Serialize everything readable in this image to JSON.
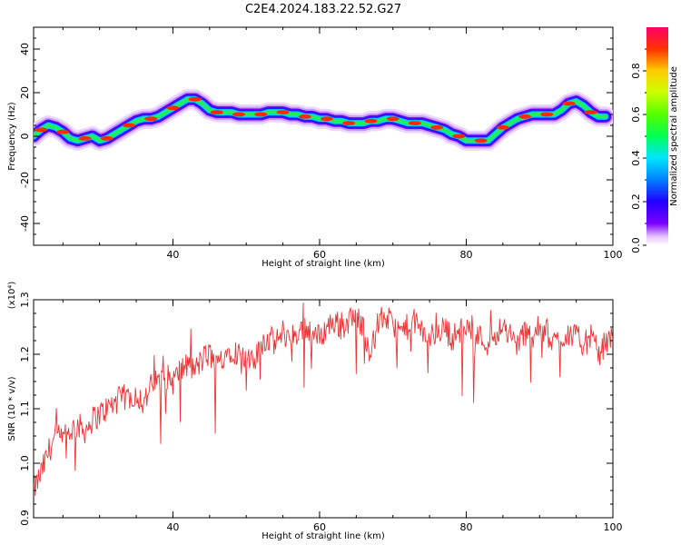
{
  "figure": {
    "title": "C2E4.2024.183.22.52.G27"
  },
  "chart_data": [
    {
      "type": "heatmap",
      "name": "spectrogram",
      "xlabel": "Height of straight line (km)",
      "ylabel": "Frequency (Hz)",
      "xlim": [
        21,
        100
      ],
      "ylim": [
        -50,
        50
      ],
      "xticks": [
        "40",
        "60",
        "80",
        "100"
      ],
      "yticks": [
        "40",
        "20",
        "0",
        "-20",
        "-40"
      ],
      "ridge": {
        "x": [
          21,
          22,
          23,
          24,
          25,
          26,
          27,
          28,
          29,
          30,
          31,
          32,
          33,
          34,
          35,
          36,
          37,
          38,
          39,
          40,
          41,
          42,
          43,
          44,
          45,
          46,
          47,
          48,
          49,
          50,
          51,
          52,
          53,
          54,
          55,
          56,
          57,
          58,
          59,
          60,
          61,
          62,
          63,
          64,
          65,
          66,
          67,
          68,
          69,
          70,
          71,
          72,
          73,
          74,
          75,
          76,
          77,
          78,
          79,
          80,
          81,
          82,
          83,
          84,
          85,
          86,
          87,
          88,
          89,
          90,
          91,
          92,
          93,
          94,
          95,
          96,
          97,
          98,
          99
        ],
        "y": [
          0,
          3,
          5,
          4,
          2,
          -1,
          -2,
          -1,
          0,
          -2,
          -1,
          1,
          3,
          5,
          7,
          8,
          8,
          9,
          11,
          13,
          15,
          17,
          17,
          15,
          12,
          11,
          11,
          11,
          10,
          10,
          10,
          10,
          11,
          11,
          11,
          10,
          10,
          9,
          9,
          8,
          8,
          7,
          7,
          6,
          6,
          6,
          7,
          7,
          8,
          8,
          7,
          6,
          6,
          6,
          5,
          4,
          3,
          1,
          0,
          -2,
          -2,
          -2,
          -2,
          1,
          4,
          6,
          8,
          9,
          10,
          10,
          10,
          10,
          12,
          15,
          16,
          14,
          11,
          9,
          9
        ]
      }
    },
    {
      "type": "line",
      "name": "snr",
      "xlabel": "Height of straight line (km)",
      "ylabel": "SNR (10 * v/v)",
      "multiplier": "(x10⁴)",
      "xlim": [
        21,
        100
      ],
      "ylim": [
        0.9,
        1.3
      ],
      "xticks": [
        "40",
        "60",
        "80",
        "100"
      ],
      "yticks": [
        "1.3",
        "1.2",
        "1.1",
        "1.0",
        "0.9"
      ],
      "series": [
        {
          "color": "#ee3333",
          "x": [
            21,
            22,
            23,
            24,
            25,
            26,
            27,
            28,
            29,
            30,
            31,
            32,
            33,
            34,
            35,
            36,
            37,
            38,
            39,
            40,
            41,
            42,
            43,
            44,
            45,
            46,
            47,
            48,
            49,
            50,
            51,
            52,
            53,
            54,
            55,
            56,
            57,
            58,
            59,
            60,
            61,
            62,
            63,
            64,
            65,
            66,
            67,
            68,
            69,
            70,
            71,
            72,
            73,
            74,
            75,
            76,
            77,
            78,
            79,
            80,
            81,
            82,
            83,
            84,
            85,
            86,
            87,
            88,
            89,
            90,
            91,
            92,
            93,
            94,
            95,
            96,
            97,
            98,
            99,
            100
          ],
          "y": [
            0.95,
            0.98,
            1.02,
            1.05,
            1.04,
            1.06,
            1.07,
            1.06,
            1.08,
            1.09,
            1.1,
            1.11,
            1.12,
            1.12,
            1.13,
            1.11,
            1.14,
            1.15,
            1.16,
            1.15,
            1.17,
            1.18,
            1.17,
            1.19,
            1.2,
            1.18,
            1.2,
            1.21,
            1.2,
            1.19,
            1.18,
            1.22,
            1.23,
            1.22,
            1.24,
            1.23,
            1.24,
            1.25,
            1.24,
            1.23,
            1.25,
            1.26,
            1.25,
            1.26,
            1.27,
            1.25,
            1.2,
            1.26,
            1.27,
            1.25,
            1.24,
            1.25,
            1.26,
            1.24,
            1.23,
            1.24,
            1.25,
            1.23,
            1.24,
            1.25,
            1.24,
            1.23,
            1.22,
            1.24,
            1.25,
            1.23,
            1.22,
            1.24,
            1.23,
            1.25,
            1.24,
            1.22,
            1.23,
            1.24,
            1.23,
            1.22,
            1.23,
            1.2,
            1.22,
            1.23
          ]
        }
      ]
    },
    {
      "type": "colorbar",
      "name": "amplitude-colorbar",
      "label": "Normalized spectral amplitude",
      "range": [
        0,
        1
      ],
      "ticks": [
        "0.0",
        "0.2",
        "0.4",
        "0.6",
        "0.8"
      ]
    }
  ]
}
